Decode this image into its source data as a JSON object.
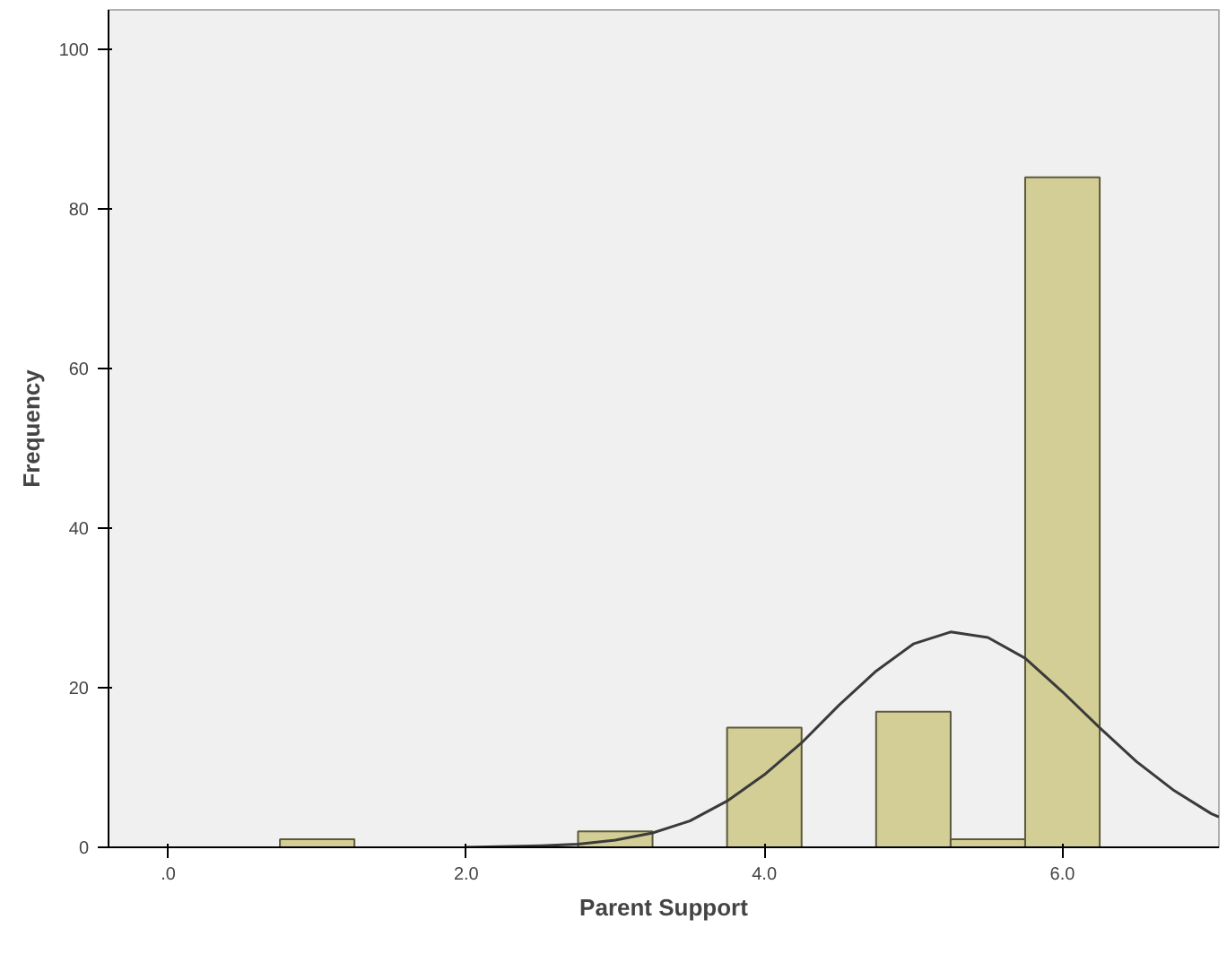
{
  "chart_data": {
    "type": "histogram",
    "xlabel": "Parent Support",
    "ylabel": "Frequency",
    "xlim": [
      -0.4,
      7.05
    ],
    "ylim": [
      0,
      105
    ],
    "xticks": [
      {
        "value": 0,
        "label": ".0"
      },
      {
        "value": 2,
        "label": "2.0"
      },
      {
        "value": 4,
        "label": "4.0"
      },
      {
        "value": 6,
        "label": "6.0"
      }
    ],
    "yticks": [
      0,
      20,
      40,
      60,
      80,
      100
    ],
    "grid": false,
    "series": [
      {
        "color": "#d3cd96",
        "bins": [
          0.75,
          1.25,
          1.75,
          2.25,
          2.75,
          3.25,
          3.75,
          4.25,
          4.75,
          5.25,
          5.75,
          6.25
        ],
        "values": [
          1,
          0,
          0,
          0,
          2,
          0,
          15,
          0,
          17,
          1,
          84
        ]
      },
      {
        "type": "line",
        "color": "#3a3a3a",
        "x": [
          2.0,
          2.5,
          2.75,
          3.0,
          3.25,
          3.5,
          3.75,
          4.0,
          4.25,
          4.5,
          4.75,
          5.0,
          5.25,
          5.5,
          5.75,
          6.0,
          6.25,
          6.5,
          6.75,
          7.0,
          7.05
        ],
        "values": [
          0.0,
          0.2,
          0.4,
          0.9,
          1.8,
          3.3,
          5.8,
          9.1,
          13.1,
          17.8,
          22.1,
          25.5,
          27.0,
          26.3,
          23.7,
          19.5,
          15.0,
          10.7,
          7.1,
          4.2,
          3.8
        ]
      }
    ]
  }
}
